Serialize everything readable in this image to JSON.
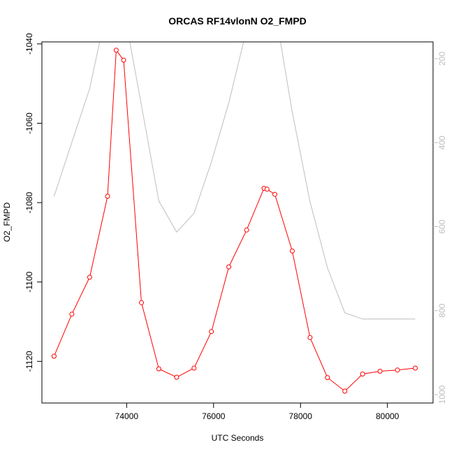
{
  "chart_data": {
    "type": "line",
    "title": "ORCAS RF14vlonN O2_FMPD",
    "xlabel": "UTC Seconds",
    "ylabel": "O2_FMPD",
    "xlim": [
      72050,
      81050
    ],
    "ylim": [
      -1130.5,
      -1039.5
    ],
    "y2lim": [
      160,
      1020
    ],
    "y2_reversed": true,
    "xticks": [
      74000,
      76000,
      78000,
      80000
    ],
    "yticks": [
      -1040,
      -1060,
      -1080,
      -1100,
      -1120
    ],
    "y2ticks": [
      200,
      400,
      600,
      800,
      1000
    ],
    "grid": false,
    "series": [
      {
        "color": "#ff0000",
        "markers": true,
        "axis": "left",
        "points": [
          [
            72330,
            -1118.7
          ],
          [
            72740,
            -1108.1
          ],
          [
            73150,
            -1098.8
          ],
          [
            73560,
            -1078.4
          ],
          [
            73760,
            -1041.6
          ],
          [
            73930,
            -1044.1
          ],
          [
            74340,
            -1105.2
          ],
          [
            74740,
            -1121.9
          ],
          [
            75150,
            -1124.0
          ],
          [
            75550,
            -1121.7
          ],
          [
            75950,
            -1112.5
          ],
          [
            76350,
            -1096.2
          ],
          [
            76760,
            -1086.9
          ],
          [
            77160,
            -1076.4
          ],
          [
            77230,
            -1076.6
          ],
          [
            77410,
            -1077.9
          ],
          [
            77810,
            -1092.2
          ],
          [
            78220,
            -1114.0
          ],
          [
            78620,
            -1124.1
          ],
          [
            79020,
            -1127.5
          ],
          [
            79430,
            -1123.2
          ],
          [
            79830,
            -1122.5
          ],
          [
            80230,
            -1122.2
          ],
          [
            80640,
            -1121.7
          ]
        ]
      },
      {
        "color": "#bebebe",
        "markers": false,
        "axis": "right",
        "points": [
          [
            72330,
            528
          ],
          [
            72740,
            399
          ],
          [
            73150,
            271
          ],
          [
            73560,
            72
          ],
          [
            73930,
            80
          ],
          [
            74340,
            311
          ],
          [
            74740,
            539
          ],
          [
            75150,
            613
          ],
          [
            75550,
            568
          ],
          [
            75950,
            446
          ],
          [
            76350,
            305
          ],
          [
            76760,
            130
          ],
          [
            77160,
            40
          ],
          [
            77410,
            80
          ],
          [
            77810,
            327
          ],
          [
            78220,
            541
          ],
          [
            78620,
            698
          ],
          [
            79020,
            805
          ],
          [
            79430,
            820
          ],
          [
            79830,
            820
          ],
          [
            80230,
            820
          ],
          [
            80640,
            820
          ]
        ]
      }
    ]
  }
}
